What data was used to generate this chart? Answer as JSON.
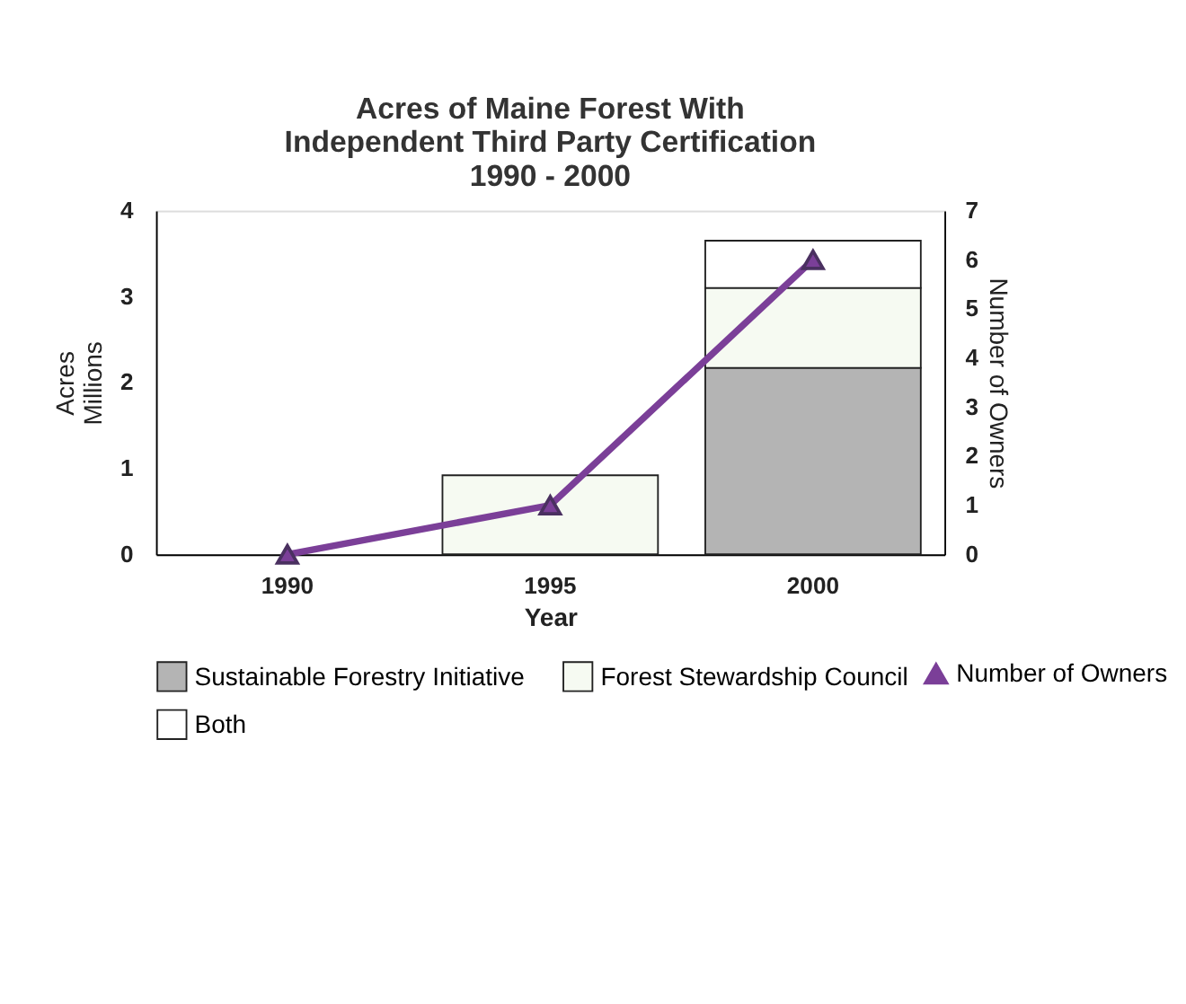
{
  "chart_data": {
    "type": "bar",
    "title": "Acres of Maine Forest With\nIndependent Third Party Certification\n1990 - 2000",
    "xlabel": "Year",
    "ylabel": "Acres\nMillions",
    "y2label": "Number of Owners",
    "categories": [
      "1990",
      "1995",
      "2000"
    ],
    "stacked": true,
    "ylim": [
      0,
      4
    ],
    "yticks": [
      0,
      1,
      2,
      3,
      4
    ],
    "y2lim": [
      0,
      7
    ],
    "y2ticks": [
      0,
      1,
      2,
      3,
      4,
      5,
      6,
      7
    ],
    "grid": false,
    "legend": "bottom",
    "series": [
      {
        "name": "Sustainable Forestry Initiative",
        "color": "#b4b4b4",
        "values": [
          null,
          null,
          2.17
        ]
      },
      {
        "name": "Forest Stewardship Council",
        "color": "#f6faf2",
        "values": [
          null,
          0.92,
          0.93
        ]
      },
      {
        "name": "Both",
        "color": "#ffffff",
        "values": [
          null,
          null,
          0.55
        ]
      },
      {
        "name": "Number of Owners",
        "type": "line",
        "axis": "y2",
        "color": "#7b3f98",
        "marker": "triangle",
        "values": [
          0,
          1,
          6
        ]
      }
    ]
  }
}
